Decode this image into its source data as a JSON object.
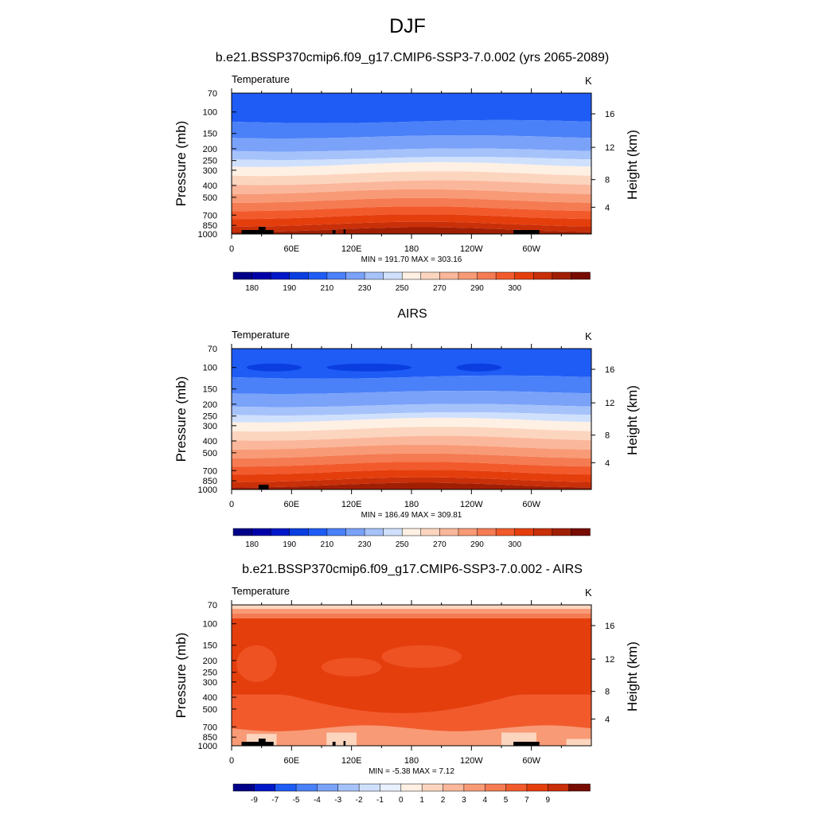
{
  "figure": {
    "title": "DJF"
  },
  "colors": {
    "temp": [
      "#000088",
      "#0000a8",
      "#0018c8",
      "#0a3ee0",
      "#1f5cf6",
      "#4a80f8",
      "#7aa2f9",
      "#a6c2fb",
      "#cfe0fd",
      "#fff0e4",
      "#fcd5bf",
      "#fbb79b",
      "#f89a76",
      "#f57b52",
      "#f25a2c",
      "#e53e0d",
      "#c92f08",
      "#a01f04",
      "#780b00"
    ],
    "diff": [
      "#000088",
      "#0018c8",
      "#1f5cf6",
      "#4a80f8",
      "#7aa2f9",
      "#a6c2fb",
      "#cfe0fd",
      "#e8f0fe",
      "#fff0e4",
      "#fcd5bf",
      "#fbb79b",
      "#f89a76",
      "#f57b52",
      "#f25a2c",
      "#e53e0d",
      "#c92f08",
      "#780b00"
    ]
  },
  "chart_data": [
    {
      "type": "heatmap",
      "title": "b.e21.BSSP370cmip6.f09_g17.CMIP6-SSP3-7.0.002 (yrs 2065-2089)",
      "left_label": "Temperature",
      "units": "K",
      "ylabel": "Pressure (mb)",
      "ylabel_right": "Height (km)",
      "xticks": [
        "0",
        "60E",
        "120E",
        "180",
        "120W",
        "60W"
      ],
      "yticks": [
        "70",
        "100",
        "150",
        "200",
        "250",
        "300",
        "400",
        "500",
        "700",
        "850",
        "1000"
      ],
      "yticks_right": [
        "4",
        "8",
        "12",
        "16"
      ],
      "stats": "MIN = 191.70  MAX = 303.16",
      "colorbar_labels": [
        "180",
        "190",
        "210",
        "230",
        "250",
        "270",
        "290",
        "300"
      ],
      "y_range_mb": [
        70,
        1000
      ],
      "x_range_deg": [
        0,
        360
      ],
      "contour_levels_K": [
        180,
        185,
        190,
        200,
        210,
        220,
        230,
        240,
        250,
        260,
        270,
        275,
        280,
        285,
        290,
        295,
        300
      ],
      "band_colors_K_index_bottom_to_top": [
        16,
        15,
        14,
        13,
        12,
        11,
        10,
        9,
        8,
        7,
        6,
        5,
        4
      ]
    },
    {
      "type": "heatmap",
      "title": "AIRS",
      "left_label": "Temperature",
      "units": "K",
      "ylabel": "Pressure (mb)",
      "ylabel_right": "Height (km)",
      "xticks": [
        "0",
        "60E",
        "120E",
        "180",
        "120W",
        "60W"
      ],
      "yticks": [
        "70",
        "100",
        "150",
        "200",
        "250",
        "300",
        "400",
        "500",
        "700",
        "850",
        "1000"
      ],
      "yticks_right": [
        "4",
        "8",
        "12",
        "16"
      ],
      "stats": "MIN = 186.49  MAX = 309.81",
      "colorbar_labels": [
        "180",
        "190",
        "210",
        "230",
        "250",
        "270",
        "290",
        "300"
      ],
      "y_range_mb": [
        70,
        1000
      ],
      "x_range_deg": [
        0,
        360
      ],
      "contour_levels_K": [
        180,
        185,
        190,
        200,
        210,
        220,
        230,
        240,
        250,
        260,
        270,
        275,
        280,
        285,
        290,
        295,
        300
      ],
      "band_colors_K_index_bottom_to_top": [
        16,
        15,
        14,
        13,
        12,
        11,
        10,
        9,
        8,
        7,
        6,
        5,
        4,
        3
      ]
    },
    {
      "type": "heatmap",
      "title": "b.e21.BSSP370cmip6.f09_g17.CMIP6-SSP3-7.0.002 - AIRS",
      "left_label": "Temperature",
      "units": "K",
      "ylabel": "Pressure (mb)",
      "ylabel_right": "Height (km)",
      "xticks": [
        "0",
        "60E",
        "120E",
        "180",
        "120W",
        "60W"
      ],
      "yticks": [
        "70",
        "100",
        "150",
        "200",
        "250",
        "300",
        "400",
        "500",
        "700",
        "850",
        "1000"
      ],
      "yticks_right": [
        "4",
        "8",
        "12",
        "16"
      ],
      "stats": "MIN =  -5.38  MAX =   7.12",
      "colorbar_labels": [
        "-9",
        "-7",
        "-5",
        "-4",
        "-3",
        "-2",
        "-1",
        "0",
        "1",
        "2",
        "3",
        "4",
        "5",
        "7",
        "9"
      ],
      "y_range_mb": [
        70,
        1000
      ],
      "x_range_deg": [
        0,
        360
      ],
      "contour_levels_K": [
        -9,
        -8,
        -7,
        -6,
        -5,
        -4,
        -3,
        -2,
        -1,
        0,
        1,
        2,
        3,
        4,
        5,
        7,
        9
      ],
      "dominant_band": "5 to 7 K"
    }
  ]
}
